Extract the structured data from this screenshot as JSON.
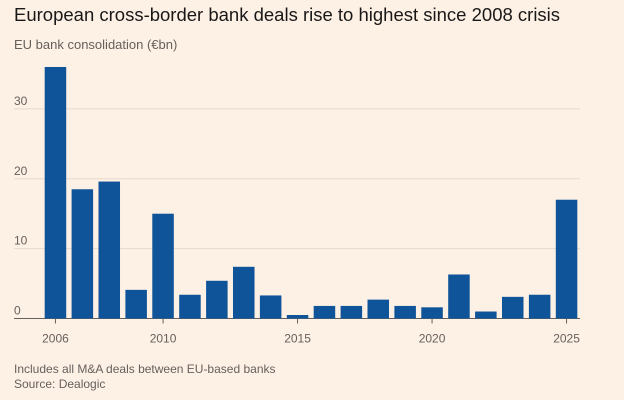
{
  "chart_data": {
    "type": "bar",
    "title": "European cross-border bank deals rise to highest since 2008 crisis",
    "subtitle": "EU bank consolidation (€bn)",
    "xlabel": "",
    "ylabel": "",
    "categories": [
      "2006",
      "2007",
      "2008",
      "2009",
      "2010",
      "2011",
      "2012",
      "2013",
      "2014",
      "2015",
      "2016",
      "2017",
      "2018",
      "2019",
      "2020",
      "2021",
      "2022",
      "2023",
      "2024",
      "2025"
    ],
    "values": [
      36,
      18.5,
      19.6,
      4.1,
      15,
      3.4,
      5.4,
      7.4,
      3.3,
      0.5,
      1.8,
      1.8,
      2.7,
      1.8,
      1.6,
      6.3,
      1,
      3.1,
      3.4,
      17
    ],
    "x_tick_labels": [
      "2006",
      "2010",
      "2015",
      "2020",
      "2025"
    ],
    "y_tick_labels": [
      "0",
      "10",
      "20",
      "30"
    ],
    "ylim": [
      0,
      37
    ],
    "grid": true,
    "legend": "none",
    "bar_color": "#0f5499",
    "grid_color": "#e6d9ce",
    "background_color": "#fdf1e6"
  },
  "footnote": "Includes all M&A deals between EU-based banks",
  "source": "Source: Dealogic"
}
